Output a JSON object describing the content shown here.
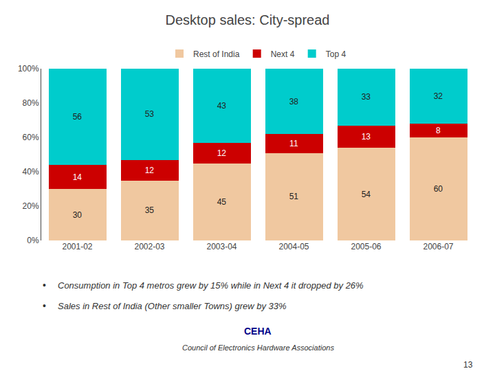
{
  "chart_data": {
    "type": "bar",
    "title": "Desktop sales: City-spread",
    "categories": [
      "2001-02",
      "2002-03",
      "2003-04",
      "2004-05",
      "2005-06",
      "2006-07"
    ],
    "series": [
      {
        "name": "Rest of India",
        "color": "#f0c8a0",
        "values": [
          30,
          35,
          45,
          51,
          54,
          60
        ]
      },
      {
        "name": "Next 4",
        "color": "#cc0000",
        "values": [
          14,
          12,
          12,
          11,
          13,
          8
        ]
      },
      {
        "name": "Top 4",
        "color": "#00cccc",
        "values": [
          56,
          53,
          43,
          38,
          33,
          32
        ]
      }
    ],
    "stacked": true,
    "data_labels": true,
    "legend": "top",
    "grid": false,
    "ylim": [
      0,
      100
    ],
    "yticks": [
      {
        "value": 0,
        "label": "0%"
      },
      {
        "value": 20,
        "label": "20%"
      },
      {
        "value": 40,
        "label": "40%"
      },
      {
        "value": 60,
        "label": "60%"
      },
      {
        "value": 80,
        "label": "80%"
      },
      {
        "value": 100,
        "label": "100%"
      }
    ],
    "annotations": [
      "•",
      "Consumption in Top 4 metros grew by 15% while in Next 4 it dropped by 26%",
      "•",
      "Sales in Rest of India (Other smaller Towns) grew by 33%",
      "CEHA",
      "Council of Electronics Hardware Associations",
      "13"
    ]
  }
}
